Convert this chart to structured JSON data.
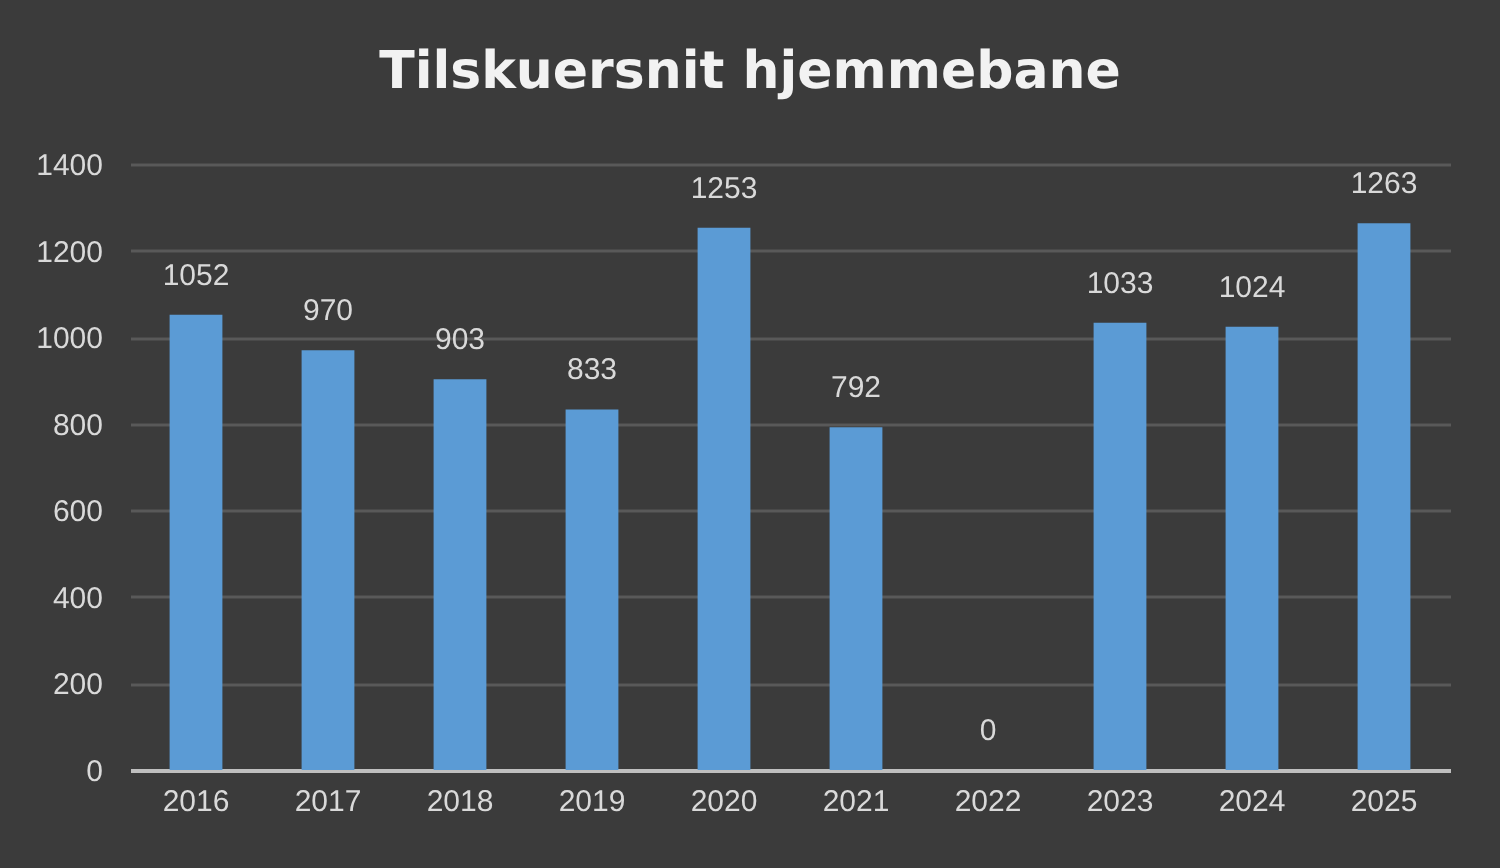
{
  "chart_data": {
    "type": "bar",
    "title": "Tilskuersnit hjemmebane",
    "categories": [
      "2016",
      "2017",
      "2018",
      "2019",
      "2020",
      "2021",
      "2022",
      "2023",
      "2024",
      "2025"
    ],
    "values": [
      1052,
      970,
      903,
      833,
      1253,
      792,
      0,
      1033,
      1024,
      1263
    ],
    "color": "#5b9bd5",
    "ylim": [
      0,
      1400
    ],
    "yticks": [
      0,
      200,
      400,
      600,
      800,
      1000,
      1200,
      1400
    ],
    "grid": "y",
    "data_labels": true
  }
}
